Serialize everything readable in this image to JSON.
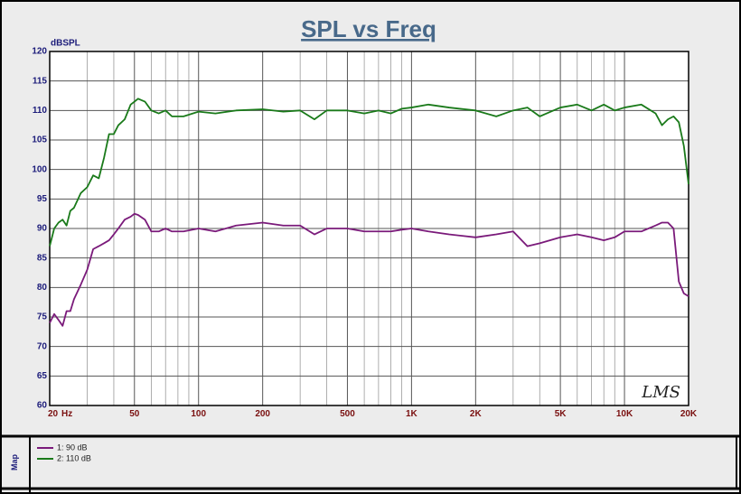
{
  "chart_data": {
    "type": "line",
    "title": "SPL vs Freq",
    "ylabel": "dBSPL",
    "xlabel": "Hz",
    "log_x": true,
    "grid": true,
    "xlim": [
      20,
      20000
    ],
    "ylim": [
      60,
      120
    ],
    "xticks": [
      20,
      50,
      100,
      200,
      500,
      {
        "value": 1000,
        "label": "1K"
      },
      {
        "value": 2000,
        "label": "2K"
      },
      {
        "value": 5000,
        "label": "5K"
      },
      {
        "value": 10000,
        "label": "10K"
      },
      {
        "value": 20000,
        "label": "20K"
      }
    ],
    "minor_xticks": [
      30,
      40,
      60,
      70,
      80,
      90,
      300,
      400,
      600,
      700,
      800,
      900,
      3000,
      4000,
      6000,
      7000,
      8000,
      9000
    ],
    "yticks": [
      60,
      65,
      70,
      75,
      80,
      85,
      90,
      95,
      100,
      105,
      110,
      115,
      120
    ],
    "legend_title": "Map",
    "logo": "LMS",
    "x": [
      20,
      21,
      22,
      23,
      24,
      25,
      26,
      28,
      30,
      32,
      34,
      36,
      38,
      40,
      42,
      45,
      48,
      50,
      52,
      56,
      60,
      65,
      70,
      75,
      85,
      100,
      120,
      150,
      200,
      250,
      300,
      350,
      400,
      500,
      600,
      700,
      800,
      900,
      1000,
      1200,
      1500,
      2000,
      2500,
      3000,
      3500,
      4000,
      5000,
      6000,
      7000,
      8000,
      9000,
      10000,
      12000,
      14000,
      15000,
      16000,
      17000,
      18000,
      19000,
      20000
    ],
    "series": [
      {
        "name": "1: 90 dB",
        "color": "#7a1a7a",
        "values": [
          74,
          75.5,
          74.5,
          73.5,
          76,
          76,
          78,
          80.5,
          83,
          86.5,
          87,
          87.5,
          88,
          89,
          90,
          91.5,
          92,
          92.5,
          92.3,
          91.5,
          89.5,
          89.5,
          90,
          89.5,
          89.5,
          90,
          89.5,
          90.5,
          91,
          90.5,
          90.5,
          89,
          90,
          90,
          89.5,
          89.5,
          89.5,
          89.8,
          90,
          89.5,
          89,
          88.5,
          89,
          89.5,
          87,
          87.5,
          88.5,
          89,
          88.5,
          88,
          88.5,
          89.5,
          89.5,
          90.5,
          91,
          91,
          90,
          81,
          79,
          78.5
        ]
      },
      {
        "name": "2: 110 dB",
        "color": "#1a7a1a",
        "values": [
          87,
          90,
          91,
          91.5,
          90.5,
          93,
          93.5,
          96,
          97,
          99,
          98.5,
          102,
          106,
          106,
          107.5,
          108.5,
          111,
          111.5,
          112,
          111.5,
          110,
          109.5,
          110,
          109,
          109,
          109.8,
          109.5,
          110,
          110.2,
          109.8,
          110,
          108.5,
          110,
          110,
          109.5,
          110,
          109.5,
          110.3,
          110.5,
          111,
          110.5,
          110,
          109,
          110,
          110.5,
          109,
          110.5,
          111,
          110,
          111,
          110,
          110.5,
          111,
          109.5,
          107.5,
          108.5,
          109,
          108,
          104,
          97.5
        ]
      }
    ]
  }
}
